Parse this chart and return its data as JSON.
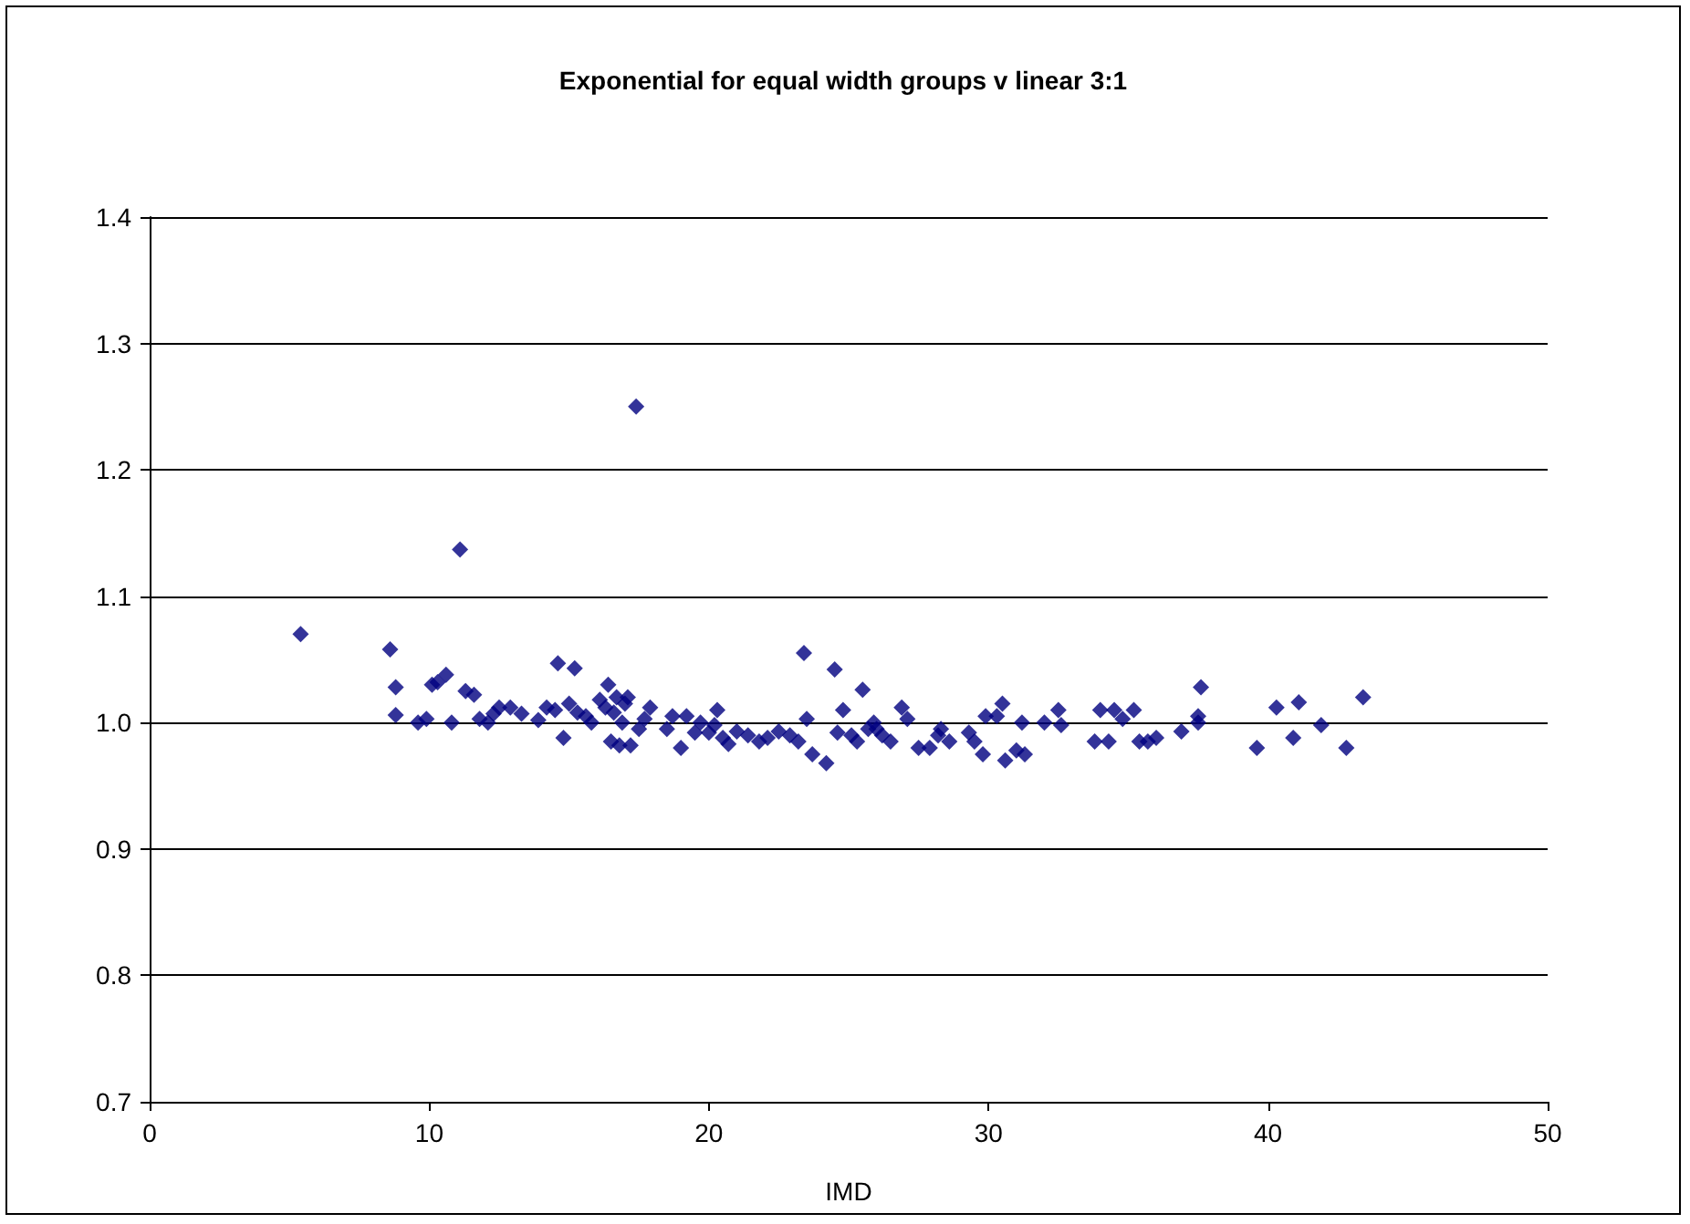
{
  "chart_data": {
    "type": "scatter",
    "title": "Exponential for equal width groups v linear 3:1",
    "xlabel": "IMD",
    "x": [
      5.4,
      8.6,
      8.8,
      8.8,
      9.6,
      9.9,
      10.1,
      10.3,
      10.6,
      10.8,
      11.1,
      11.3,
      11.6,
      11.8,
      12.1,
      12.3,
      12.5,
      12.9,
      13.3,
      13.9,
      14.2,
      14.5,
      14.6,
      14.8,
      15.0,
      15.2,
      15.3,
      15.6,
      15.8,
      16.1,
      16.3,
      16.4,
      16.5,
      16.6,
      16.7,
      16.8,
      16.9,
      17.0,
      17.1,
      17.2,
      17.4,
      17.5,
      17.7,
      17.9,
      18.5,
      18.7,
      19.0,
      19.2,
      19.5,
      19.7,
      20.0,
      20.2,
      20.3,
      20.5,
      20.7,
      21.0,
      21.4,
      21.8,
      22.1,
      22.5,
      22.9,
      23.2,
      23.4,
      23.5,
      23.7,
      24.2,
      24.5,
      24.6,
      24.8,
      25.1,
      25.3,
      25.5,
      25.7,
      25.9,
      26.0,
      26.2,
      26.5,
      26.9,
      27.1,
      27.5,
      27.9,
      28.2,
      28.3,
      28.6,
      29.3,
      29.5,
      29.8,
      29.9,
      30.3,
      30.5,
      30.6,
      31.0,
      31.3,
      31.2,
      32.0,
      32.5,
      32.6,
      33.8,
      34.0,
      34.3,
      34.5,
      34.8,
      35.2,
      35.4,
      35.7,
      36.0,
      36.9,
      37.5,
      37.5,
      37.6,
      39.6,
      40.3,
      40.9,
      41.1,
      41.9,
      42.8,
      43.4
    ],
    "values": [
      1.07,
      1.058,
      1.028,
      1.006,
      1.0,
      1.003,
      1.03,
      1.032,
      1.038,
      1.0,
      1.137,
      1.025,
      1.022,
      1.003,
      1.0,
      1.007,
      1.012,
      1.012,
      1.007,
      1.002,
      1.012,
      1.01,
      1.047,
      0.988,
      1.015,
      1.043,
      1.008,
      1.005,
      1.0,
      1.018,
      1.012,
      1.03,
      0.985,
      1.008,
      1.02,
      0.982,
      1.0,
      1.015,
      1.02,
      0.982,
      1.25,
      0.995,
      1.003,
      1.012,
      0.995,
      1.005,
      0.98,
      1.005,
      0.992,
      1.0,
      0.992,
      0.998,
      1.01,
      0.988,
      0.983,
      0.993,
      0.99,
      0.985,
      0.988,
      0.993,
      0.99,
      0.985,
      1.055,
      1.003,
      0.975,
      0.968,
      1.042,
      0.992,
      1.01,
      0.99,
      0.985,
      1.026,
      0.995,
      1.0,
      0.995,
      0.99,
      0.985,
      1.012,
      1.003,
      0.98,
      0.98,
      0.99,
      0.995,
      0.985,
      0.992,
      0.985,
      0.975,
      1.005,
      1.005,
      1.015,
      0.97,
      0.978,
      0.975,
      1.0,
      1.0,
      1.01,
      0.998,
      0.985,
      1.01,
      0.985,
      1.01,
      1.003,
      1.01,
      0.985,
      0.985,
      0.988,
      0.993,
      1.0,
      1.005,
      1.028,
      0.98,
      1.012,
      0.988,
      1.016,
      0.998,
      0.98,
      1.02
    ],
    "color": "#000080",
    "marker": "diamond",
    "xlim": [
      0,
      50
    ],
    "xticks": [
      0,
      10,
      20,
      30,
      40,
      50
    ],
    "ylim": [
      0.7,
      1.4
    ],
    "yticks": [
      0.7,
      0.8,
      0.9,
      {
        "value": 1,
        "label": "1.0"
      },
      1.1,
      1.2,
      1.3,
      1.4
    ],
    "grid": "y"
  }
}
